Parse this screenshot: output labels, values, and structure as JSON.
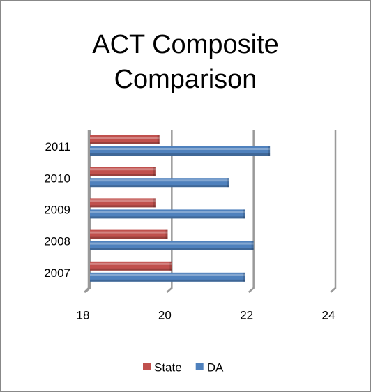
{
  "chart_data": {
    "type": "bar",
    "orientation": "horizontal",
    "title": "ACT Composite Comparison",
    "categories": [
      "2007",
      "2008",
      "2009",
      "2010",
      "2011"
    ],
    "series": [
      {
        "name": "State",
        "color": "#c0504d",
        "values": [
          20.0,
          19.9,
          19.6,
          19.6,
          19.7
        ]
      },
      {
        "name": "DA",
        "color": "#4f81bd",
        "values": [
          21.8,
          22.0,
          21.8,
          21.4,
          22.4
        ]
      }
    ],
    "xlim": [
      18,
      24
    ],
    "xticks": [
      18,
      20,
      22,
      24
    ],
    "grid": true,
    "legend": "bottom"
  }
}
